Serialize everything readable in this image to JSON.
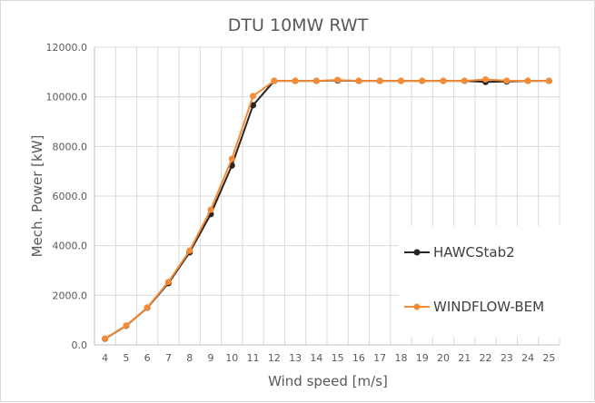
{
  "chart_data": {
    "type": "line",
    "title": "DTU 10MW RWT",
    "xlabel": "Wind speed [m/s]",
    "ylabel": "Mech. Power [kW]",
    "categories": [
      "4",
      "5",
      "6",
      "7",
      "8",
      "9",
      "10",
      "11",
      "12",
      "13",
      "14",
      "15",
      "16",
      "17",
      "18",
      "19",
      "20",
      "21",
      "22",
      "23",
      "24",
      "25"
    ],
    "ylim": [
      0,
      12000
    ],
    "yticks": [
      "0.0",
      "2000.0",
      "4000.0",
      "6000.0",
      "8000.0",
      "10000.0",
      "12000.0"
    ],
    "grid": true,
    "legend_position": "right",
    "series": [
      {
        "name": "HAWCStab2",
        "color": "#262626",
        "values": [
          250,
          770,
          1500,
          2490,
          3730,
          5270,
          7230,
          9660,
          10640,
          10640,
          10640,
          10660,
          10640,
          10640,
          10640,
          10640,
          10640,
          10640,
          10600,
          10620,
          10640,
          10640
        ]
      },
      {
        "name": "WINDFLOW-BEM",
        "color": "#f58b35",
        "values": [
          260,
          780,
          1510,
          2540,
          3800,
          5450,
          7500,
          10030,
          10640,
          10640,
          10640,
          10680,
          10640,
          10640,
          10640,
          10640,
          10640,
          10640,
          10700,
          10650,
          10640,
          10640
        ]
      }
    ]
  }
}
